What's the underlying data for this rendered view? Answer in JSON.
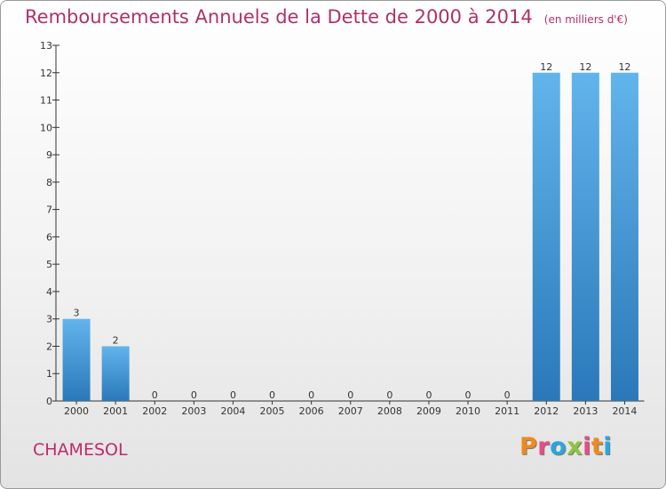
{
  "header": {
    "title": "Remboursements Annuels de la Dette de 2000 à 2014",
    "unit": "(en milliers d'€)"
  },
  "footer": {
    "commune": "CHAMESOL",
    "logo_text": "Proxiti",
    "logo_colors": [
      "#f08a1c",
      "#e84b8a",
      "#27a8e0",
      "#8cc63f",
      "#e84b8a",
      "#f08a1c",
      "#27a8e0"
    ]
  },
  "colors": {
    "bar_light": "#62b4ec",
    "bar_dark": "#2a78b9",
    "axis": "#333333",
    "title": "#b0306a"
  },
  "chart_data": {
    "type": "bar",
    "categories": [
      "2000",
      "2001",
      "2002",
      "2003",
      "2004",
      "2005",
      "2006",
      "2007",
      "2008",
      "2009",
      "2010",
      "2011",
      "2012",
      "2013",
      "2014"
    ],
    "values": [
      3,
      2,
      0,
      0,
      0,
      0,
      0,
      0,
      0,
      0,
      0,
      0,
      12,
      12,
      12
    ],
    "data_labels": [
      "3",
      "2",
      "0",
      "0",
      "0",
      "0",
      "0",
      "0",
      "0",
      "0",
      "0",
      "0",
      "12",
      "12",
      "12"
    ],
    "y_ticks": [
      0,
      1,
      2,
      3,
      4,
      5,
      6,
      7,
      8,
      9,
      10,
      11,
      12,
      13
    ],
    "ylim": [
      0,
      13
    ],
    "title": "Remboursements Annuels de la Dette de 2000 à 2014",
    "xlabel": "",
    "ylabel": "",
    "grid": false,
    "legend": "none"
  }
}
